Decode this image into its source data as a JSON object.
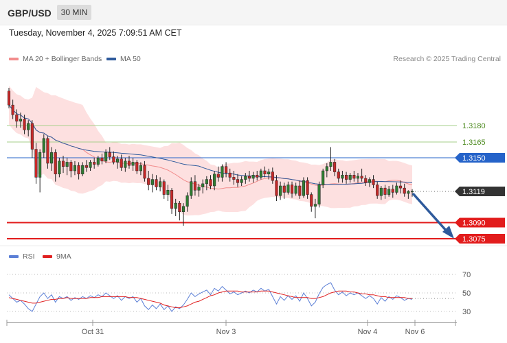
{
  "header": {
    "symbol": "GBP/USD",
    "timeframe": "30 MIN",
    "datetime": "Tuesday, November 4, 2025 7:09:51 AM CET",
    "credit": "Research © 2025 Trading Central"
  },
  "legend": {
    "ma20_label": "MA 20 + Bollinger Bands",
    "ma20_color": "#f28c8c",
    "ma50_label": "MA 50",
    "ma50_color": "#2e5a9c"
  },
  "rsi_legend": {
    "rsi_label": "RSI",
    "rsi_color": "#5b7fd6",
    "ma_label": "9MA",
    "ma_color": "#e02020"
  },
  "levels": [
    {
      "value": "1.3180",
      "style": "green"
    },
    {
      "value": "1.3165",
      "style": "green"
    },
    {
      "value": "1.3150",
      "style": "blue"
    },
    {
      "value": "1.3119",
      "style": "current"
    },
    {
      "value": "1.3090",
      "style": "red"
    },
    {
      "value": "1.3075",
      "style": "red"
    }
  ],
  "x_labels": [
    "Oct 31",
    "Nov 3",
    "Nov 4",
    "Nov 6"
  ],
  "rsi_ticks": [
    "70",
    "50",
    "30"
  ],
  "chart_data": [
    {
      "type": "candlestick",
      "title": "GBP/USD 30 MIN",
      "ylim": [
        1.306,
        1.324
      ],
      "price_levels": {
        "resistance": [
          1.318,
          1.3165,
          1.315
        ],
        "current": 1.3119,
        "support": [
          1.309,
          1.3075
        ]
      },
      "ohlc": [
        [
          1.3212,
          1.3215,
          1.3196,
          1.3199
        ],
        [
          1.3199,
          1.3204,
          1.3186,
          1.319
        ],
        [
          1.319,
          1.3195,
          1.3178,
          1.3184
        ],
        [
          1.3184,
          1.3192,
          1.3178,
          1.3186
        ],
        [
          1.3186,
          1.319,
          1.3172,
          1.3176
        ],
        [
          1.3176,
          1.3185,
          1.317,
          1.3182
        ],
        [
          1.3182,
          1.3185,
          1.315,
          1.3158
        ],
        [
          1.3158,
          1.3164,
          1.3126,
          1.3132
        ],
        [
          1.3132,
          1.3158,
          1.3118,
          1.3155
        ],
        [
          1.3155,
          1.3172,
          1.315,
          1.3168
        ],
        [
          1.3168,
          1.317,
          1.314,
          1.3145
        ],
        [
          1.3145,
          1.316,
          1.3138,
          1.3155
        ],
        [
          1.3155,
          1.3158,
          1.3128,
          1.3135
        ],
        [
          1.3135,
          1.315,
          1.3132,
          1.3147
        ],
        [
          1.3147,
          1.3152,
          1.3136,
          1.3142
        ],
        [
          1.3142,
          1.315,
          1.3134,
          1.3146
        ],
        [
          1.3146,
          1.3148,
          1.3132,
          1.3138
        ],
        [
          1.3138,
          1.3147,
          1.3134,
          1.3143
        ],
        [
          1.3143,
          1.3146,
          1.313,
          1.3135
        ],
        [
          1.3135,
          1.3146,
          1.3133,
          1.3143
        ],
        [
          1.3143,
          1.3148,
          1.3137,
          1.3141
        ],
        [
          1.3141,
          1.3148,
          1.3138,
          1.3146
        ],
        [
          1.3146,
          1.315,
          1.314,
          1.3144
        ],
        [
          1.3144,
          1.3152,
          1.3142,
          1.315
        ],
        [
          1.315,
          1.3154,
          1.3144,
          1.3147
        ],
        [
          1.3147,
          1.3158,
          1.3145,
          1.3155
        ],
        [
          1.3155,
          1.316,
          1.3148,
          1.3151
        ],
        [
          1.3151,
          1.3156,
          1.3144,
          1.3146
        ],
        [
          1.3146,
          1.3152,
          1.314,
          1.3149
        ],
        [
          1.3149,
          1.3153,
          1.3138,
          1.3141
        ],
        [
          1.3141,
          1.315,
          1.3137,
          1.3147
        ],
        [
          1.3147,
          1.3152,
          1.314,
          1.3143
        ],
        [
          1.3143,
          1.315,
          1.3138,
          1.3146
        ],
        [
          1.3146,
          1.3148,
          1.3135,
          1.3138
        ],
        [
          1.3138,
          1.3146,
          1.3134,
          1.3143
        ],
        [
          1.3143,
          1.3147,
          1.3128,
          1.3131
        ],
        [
          1.3131,
          1.3138,
          1.312,
          1.3125
        ],
        [
          1.3125,
          1.3135,
          1.3118,
          1.313
        ],
        [
          1.313,
          1.3134,
          1.312,
          1.3123
        ],
        [
          1.3123,
          1.3132,
          1.3119,
          1.3128
        ],
        [
          1.3128,
          1.313,
          1.3112,
          1.3116
        ],
        [
          1.3116,
          1.3125,
          1.311,
          1.312
        ],
        [
          1.312,
          1.3122,
          1.3098,
          1.3103
        ],
        [
          1.3103,
          1.3112,
          1.3096,
          1.3108
        ],
        [
          1.3108,
          1.311,
          1.3092,
          1.31
        ],
        [
          1.31,
          1.3108,
          1.3087,
          1.3105
        ],
        [
          1.3105,
          1.3118,
          1.31,
          1.3115
        ],
        [
          1.3115,
          1.3132,
          1.3112,
          1.3128
        ],
        [
          1.3128,
          1.3134,
          1.3115,
          1.312
        ],
        [
          1.312,
          1.3126,
          1.3114,
          1.3123
        ],
        [
          1.3123,
          1.313,
          1.3117,
          1.3126
        ],
        [
          1.3126,
          1.3133,
          1.312,
          1.313
        ],
        [
          1.313,
          1.3134,
          1.3121,
          1.3124
        ],
        [
          1.3124,
          1.3138,
          1.312,
          1.3135
        ],
        [
          1.3135,
          1.3142,
          1.3128,
          1.3132
        ],
        [
          1.3132,
          1.3144,
          1.3128,
          1.3142
        ],
        [
          1.3142,
          1.3146,
          1.3132,
          1.3136
        ],
        [
          1.3136,
          1.314,
          1.3128,
          1.3132
        ],
        [
          1.3132,
          1.3138,
          1.3125,
          1.313
        ],
        [
          1.313,
          1.3135,
          1.3123,
          1.3127
        ],
        [
          1.3127,
          1.3133,
          1.3124,
          1.313
        ],
        [
          1.313,
          1.3136,
          1.3126,
          1.3133
        ],
        [
          1.3133,
          1.3138,
          1.3128,
          1.3131
        ],
        [
          1.3131,
          1.3137,
          1.3127,
          1.3134
        ],
        [
          1.3134,
          1.3138,
          1.3129,
          1.3132
        ],
        [
          1.3132,
          1.314,
          1.313,
          1.3138
        ],
        [
          1.3138,
          1.3142,
          1.3132,
          1.3135
        ],
        [
          1.3135,
          1.314,
          1.313,
          1.3137
        ],
        [
          1.3137,
          1.3141,
          1.3126,
          1.3129
        ],
        [
          1.3129,
          1.3134,
          1.311,
          1.3115
        ],
        [
          1.3115,
          1.3128,
          1.3111,
          1.3124
        ],
        [
          1.3124,
          1.3127,
          1.3112,
          1.3118
        ],
        [
          1.3118,
          1.3128,
          1.3116,
          1.3125
        ],
        [
          1.3125,
          1.3128,
          1.3113,
          1.3117
        ],
        [
          1.3117,
          1.3127,
          1.3115,
          1.3124
        ],
        [
          1.3124,
          1.3129,
          1.3112,
          1.3115
        ],
        [
          1.3115,
          1.3132,
          1.3113,
          1.3129
        ],
        [
          1.3129,
          1.3132,
          1.3112,
          1.3116
        ],
        [
          1.3116,
          1.3118,
          1.31,
          1.3105
        ],
        [
          1.3105,
          1.3112,
          1.3094,
          1.3107
        ],
        [
          1.3107,
          1.3128,
          1.3104,
          1.3125
        ],
        [
          1.3125,
          1.314,
          1.3122,
          1.3138
        ],
        [
          1.3138,
          1.3145,
          1.3132,
          1.3142
        ],
        [
          1.3142,
          1.316,
          1.3138,
          1.3146
        ],
        [
          1.3146,
          1.3149,
          1.3133,
          1.3137
        ],
        [
          1.3137,
          1.314,
          1.3127,
          1.3131
        ],
        [
          1.3131,
          1.3138,
          1.3127,
          1.3134
        ],
        [
          1.3134,
          1.3137,
          1.3126,
          1.313
        ],
        [
          1.313,
          1.3136,
          1.3127,
          1.3134
        ],
        [
          1.3134,
          1.3138,
          1.3128,
          1.3131
        ],
        [
          1.3131,
          1.3136,
          1.3127,
          1.3133
        ],
        [
          1.3133,
          1.314,
          1.3128,
          1.3131
        ],
        [
          1.3131,
          1.3134,
          1.3124,
          1.3127
        ],
        [
          1.3127,
          1.3132,
          1.3123,
          1.313
        ],
        [
          1.313,
          1.3134,
          1.3122,
          1.3125
        ],
        [
          1.3125,
          1.3128,
          1.3112,
          1.3115
        ],
        [
          1.3115,
          1.3124,
          1.3111,
          1.3122
        ],
        [
          1.3122,
          1.3125,
          1.3112,
          1.3116
        ],
        [
          1.3116,
          1.3124,
          1.3114,
          1.3121
        ],
        [
          1.3121,
          1.3125,
          1.3113,
          1.3118
        ],
        [
          1.3118,
          1.3127,
          1.3116,
          1.3124
        ],
        [
          1.3124,
          1.3129,
          1.3117,
          1.3122
        ],
        [
          1.3122,
          1.3126,
          1.3114,
          1.3117
        ],
        [
          1.3117,
          1.312,
          1.3112,
          1.3119
        ],
        [
          1.3119,
          1.3121,
          1.3114,
          1.3119
        ]
      ]
    },
    {
      "type": "line",
      "title": "RSI",
      "ylim": [
        20,
        80
      ],
      "ticks": [
        70,
        50,
        30
      ],
      "series": [
        {
          "name": "RSI",
          "values": [
            48,
            44,
            40,
            42,
            38,
            33,
            30,
            38,
            46,
            50,
            44,
            48,
            40,
            46,
            44,
            46,
            42,
            45,
            43,
            46,
            44,
            47,
            45,
            48,
            46,
            50,
            47,
            44,
            47,
            42,
            46,
            44,
            46,
            40,
            44,
            36,
            32,
            37,
            33,
            38,
            32,
            36,
            30,
            35,
            33,
            37,
            43,
            50,
            46,
            49,
            51,
            53,
            48,
            55,
            52,
            57,
            53,
            49,
            51,
            48,
            50,
            52,
            50,
            53,
            51,
            55,
            52,
            54,
            46,
            38,
            46,
            42,
            47,
            43,
            47,
            41,
            50,
            44,
            36,
            40,
            49,
            56,
            59,
            61,
            53,
            48,
            51,
            47,
            50,
            48,
            50,
            47,
            44,
            47,
            44,
            38,
            45,
            41,
            46,
            43,
            47,
            45,
            42,
            44,
            43
          ]
        },
        {
          "name": "9MA",
          "values": [
            45,
            44,
            43,
            42,
            41,
            40,
            39,
            39,
            40,
            41,
            42,
            43,
            43,
            44,
            44,
            45,
            44,
            44,
            44,
            44,
            44,
            45,
            45,
            45,
            46,
            46,
            46,
            46,
            46,
            46,
            46,
            45,
            45,
            45,
            44,
            43,
            42,
            41,
            40,
            39,
            37,
            36,
            35,
            34,
            34,
            35,
            36,
            38,
            40,
            41,
            43,
            45,
            47,
            48,
            50,
            51,
            52,
            52,
            52,
            52,
            51,
            51,
            51,
            51,
            51,
            52,
            52,
            52,
            51,
            50,
            49,
            48,
            47,
            46,
            45,
            45,
            45,
            45,
            44,
            44,
            45,
            46,
            48,
            50,
            51,
            52,
            52,
            52,
            51,
            51,
            50,
            49,
            49,
            48,
            48,
            47,
            46,
            46,
            45,
            45,
            45,
            45,
            45,
            44,
            44
          ]
        }
      ]
    }
  ]
}
